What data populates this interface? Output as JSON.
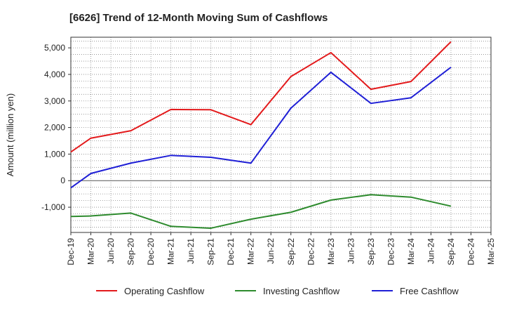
{
  "chart_data": {
    "type": "line",
    "title": "[6626]  Trend of 12-Month Moving Sum of Cashflows",
    "xlabel": "",
    "ylabel": "Amount (million yen)",
    "categories": [
      "Dec-19",
      "Mar-20",
      "Jun-20",
      "Sep-20",
      "Dec-20",
      "Mar-21",
      "Jun-21",
      "Sep-21",
      "Dec-21",
      "Mar-22",
      "Jun-22",
      "Sep-22",
      "Dec-22",
      "Mar-23",
      "Jun-23",
      "Sep-23",
      "Dec-23",
      "Mar-24",
      "Jun-24",
      "Sep-24",
      "Dec-24",
      "Mar-25"
    ],
    "ylim": [
      -1950,
      5400
    ],
    "yticks": [
      -1000,
      0,
      1000,
      2000,
      3000,
      4000,
      5000
    ],
    "ytick_labels": [
      "-1,000",
      "0",
      "1,000",
      "2,000",
      "3,000",
      "4,000",
      "5,000"
    ],
    "grid": true,
    "legend_position": "bottom",
    "series": [
      {
        "name": "Operating Cashflow",
        "color": "#e31a1c",
        "values": [
          1080,
          1600,
          null,
          1880,
          null,
          2680,
          null,
          2670,
          null,
          2110,
          null,
          3920,
          null,
          4820,
          null,
          3440,
          null,
          3730,
          null,
          5230,
          null,
          null
        ]
      },
      {
        "name": "Investing Cashflow",
        "color": "#2e8b2e",
        "values": [
          -1350,
          -1330,
          null,
          -1220,
          null,
          -1720,
          null,
          -1790,
          null,
          -1450,
          null,
          -1190,
          null,
          -730,
          null,
          -530,
          null,
          -620,
          null,
          -960,
          null,
          null
        ]
      },
      {
        "name": "Free Cashflow",
        "color": "#1f1fd6",
        "values": [
          -270,
          270,
          null,
          660,
          null,
          950,
          null,
          880,
          null,
          660,
          null,
          2730,
          null,
          4080,
          null,
          2910,
          null,
          3120,
          null,
          4270,
          null,
          null
        ]
      }
    ]
  }
}
